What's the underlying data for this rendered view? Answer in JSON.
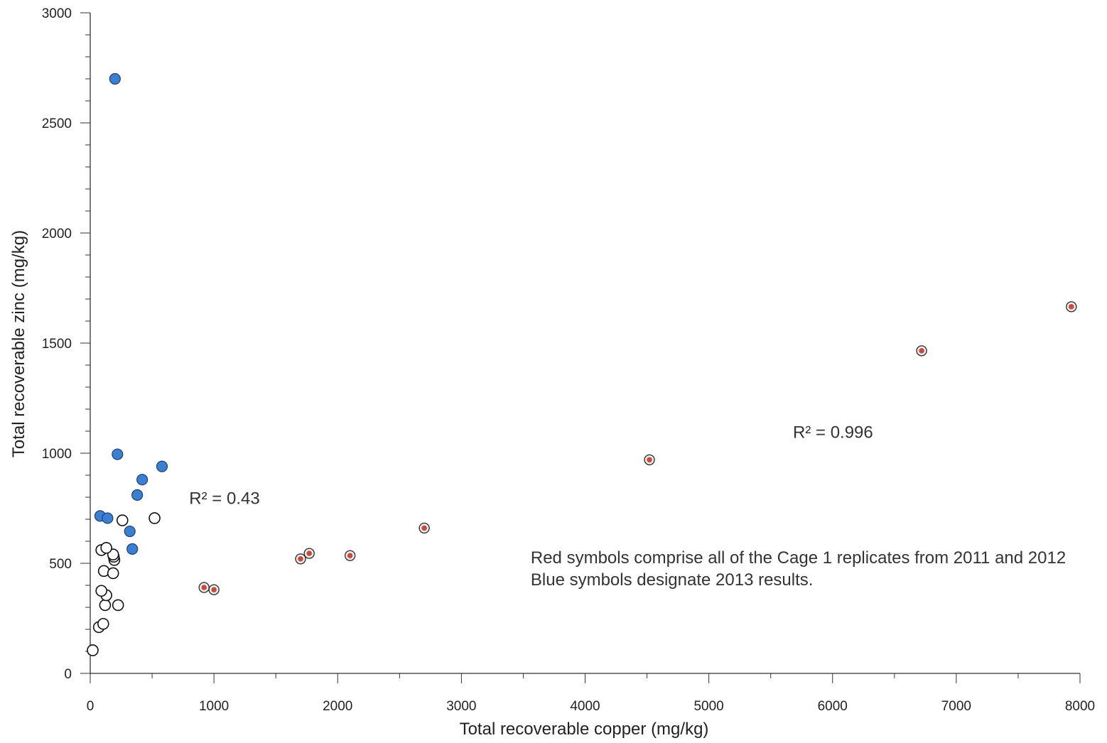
{
  "chart_data": {
    "type": "scatter",
    "title": "",
    "xlabel": "Total recoverable copper (mg/kg)",
    "ylabel": "Total recoverable zinc (mg/kg)",
    "xlim": [
      0,
      8000
    ],
    "ylim": [
      0,
      3000
    ],
    "x_ticks": [
      "0",
      "1000",
      "2000",
      "3000",
      "4000",
      "5000",
      "6000",
      "7000",
      "8000"
    ],
    "y_ticks": [
      "0",
      "500",
      "1000",
      "1500",
      "2000",
      "2500",
      "3000"
    ],
    "grid": false,
    "legend": "none",
    "series": [
      {
        "marker": "open-circle",
        "color": "#000000",
        "points": [
          {
            "x": 20,
            "y": 105
          },
          {
            "x": 70,
            "y": 210
          },
          {
            "x": 105,
            "y": 225
          },
          {
            "x": 120,
            "y": 310
          },
          {
            "x": 130,
            "y": 355
          },
          {
            "x": 90,
            "y": 375
          },
          {
            "x": 225,
            "y": 310
          },
          {
            "x": 110,
            "y": 465
          },
          {
            "x": 185,
            "y": 455
          },
          {
            "x": 195,
            "y": 515
          },
          {
            "x": 190,
            "y": 530
          },
          {
            "x": 185,
            "y": 540
          },
          {
            "x": 90,
            "y": 560
          },
          {
            "x": 130,
            "y": 570
          },
          {
            "x": 260,
            "y": 695
          },
          {
            "x": 520,
            "y": 705
          }
        ]
      },
      {
        "marker": "filled-circle",
        "color": "#3a7fd0",
        "points": [
          {
            "x": 200,
            "y": 2700
          },
          {
            "x": 220,
            "y": 995
          },
          {
            "x": 580,
            "y": 940
          },
          {
            "x": 420,
            "y": 880
          },
          {
            "x": 380,
            "y": 810
          },
          {
            "x": 80,
            "y": 715
          },
          {
            "x": 140,
            "y": 705
          },
          {
            "x": 320,
            "y": 645
          },
          {
            "x": 340,
            "y": 565
          }
        ]
      },
      {
        "marker": "ringed-dot",
        "color": "#c84a3c",
        "points": [
          {
            "x": 920,
            "y": 390
          },
          {
            "x": 1000,
            "y": 380
          },
          {
            "x": 1700,
            "y": 520
          },
          {
            "x": 1770,
            "y": 545
          },
          {
            "x": 2100,
            "y": 535
          },
          {
            "x": 2700,
            "y": 660
          },
          {
            "x": 4520,
            "y": 970
          },
          {
            "x": 6720,
            "y": 1465
          },
          {
            "x": 7930,
            "y": 1665
          }
        ]
      }
    ],
    "annotations": [
      {
        "text": "R² = 0.43",
        "x": 800,
        "y": 770
      },
      {
        "text": "R² = 0.996",
        "x": 5680,
        "y": 1070
      }
    ],
    "note": [
      "Red symbols comprise all of the Cage 1 replicates from 2011 and 2012",
      "Blue symbols designate 2013 results."
    ],
    "note_anchor": {
      "x": 3560,
      "y": 500
    }
  }
}
